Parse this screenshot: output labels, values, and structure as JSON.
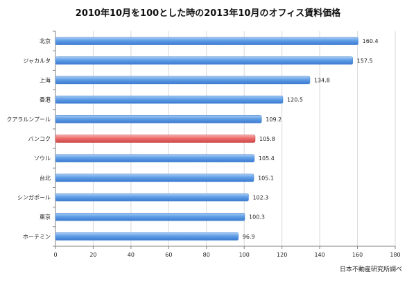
{
  "chart_data": {
    "type": "bar",
    "orientation": "horizontal",
    "title": "2010年10月を100とした時の2013年10月のオフィス賃料価格",
    "categories": [
      "北京",
      "ジャカルタ",
      "上海",
      "香港",
      "クアラルンプール",
      "バンコク",
      "ソウル",
      "台北",
      "シンガポール",
      "東京",
      "ホーチミン"
    ],
    "values": [
      160.4,
      157.5,
      134.8,
      120.5,
      109.2,
      105.8,
      105.4,
      105.1,
      102.3,
      100.3,
      96.9
    ],
    "value_labels": [
      "160.4",
      "157.5",
      "134.8",
      "120.5",
      "109.2",
      "105.8",
      "105.4",
      "105.1",
      "102.3",
      "100.3",
      "96.9"
    ],
    "highlight": "バンコク",
    "xlim": [
      0,
      180
    ],
    "xticks": [
      0,
      20,
      40,
      60,
      80,
      100,
      120,
      140,
      160,
      180
    ],
    "grid": true,
    "xlabel": "",
    "ylabel": "",
    "bar_color": "#5b9be3",
    "highlight_color": "#ee6b6b",
    "source_note": "日本不動産研究所調べ"
  }
}
